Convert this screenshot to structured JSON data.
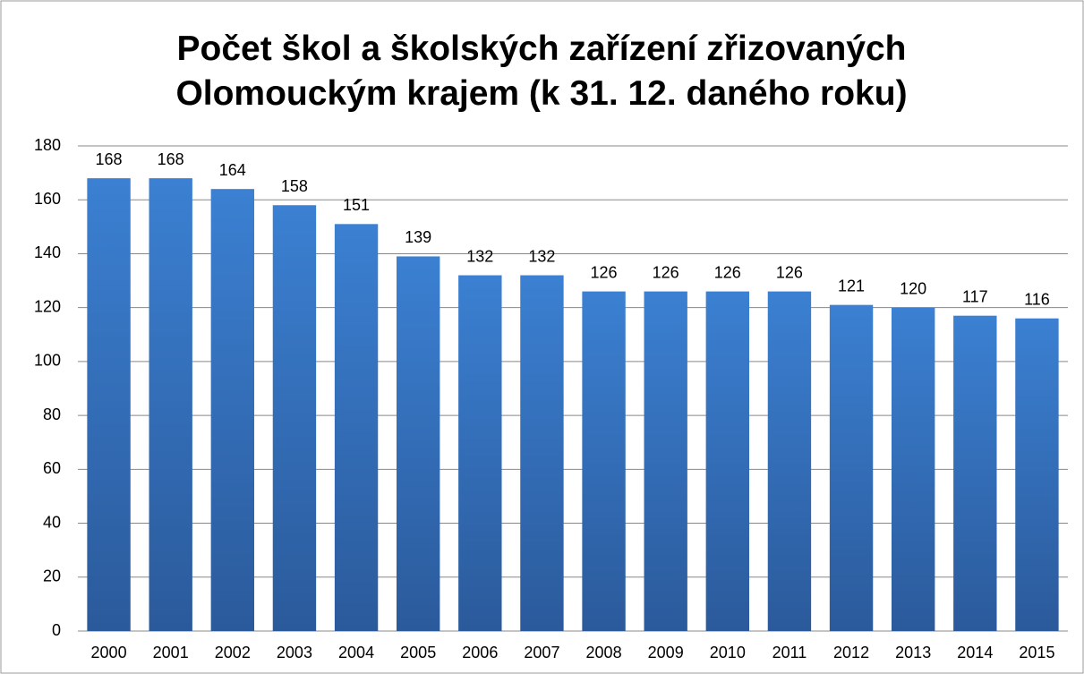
{
  "chart_data": {
    "type": "bar",
    "title": "Počet škol a školských zařízení zřizovaných Olomouckým krajem (k 31. 12. daného roku)",
    "categories": [
      "2000",
      "2001",
      "2002",
      "2003",
      "2004",
      "2005",
      "2006",
      "2007",
      "2008",
      "2009",
      "2010",
      "2011",
      "2012",
      "2013",
      "2014",
      "2015"
    ],
    "values": [
      168,
      168,
      164,
      158,
      151,
      139,
      132,
      132,
      126,
      126,
      126,
      126,
      121,
      120,
      117,
      116
    ],
    "color": "#3a7dcf",
    "ylim": [
      0,
      180
    ],
    "yticks": [
      0,
      20,
      40,
      60,
      80,
      100,
      120,
      140,
      160,
      180
    ],
    "grid": true
  }
}
